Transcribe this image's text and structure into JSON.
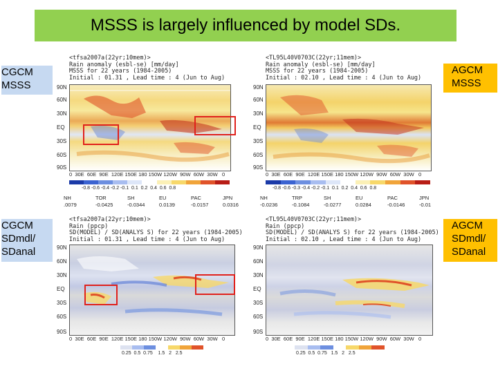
{
  "title": "MSSS is largely influenced by model SDs.",
  "labels": {
    "cgcm_msss": "CGCM\nMSSS",
    "agcm_msss": "AGCM\nMSSS",
    "cgcm_sd": "CGCM\nSDmdl/\nSDanal",
    "agcm_sd": "AGCM\nSDmdl/\nSDanal"
  },
  "panels": {
    "tl": {
      "header": "<tfsa2007a(22yr;10mem)>\nRain anomaly (esbl-se) [mm/day]\nMSSS for 22 years (1984-2005)\nInitial : 01.31 , Lead time : 4 (Jun to Aug)",
      "stats_names": [
        "NH",
        "TOR",
        "SH",
        "EU",
        "PAC",
        "JPN"
      ],
      "stats_values": [
        ".0079",
        "-0.0425",
        "-0.0344",
        "0.0139",
        "-0.0157",
        "0.0316"
      ]
    },
    "tr": {
      "header": "<TL95L40V0703C(22yr;11mem)>\nRain anomaly (esbl-se) [mm/day]\nMSSS for 22 years (1984-2005)\nInitial : 02.10 , Lead time : 4 (Jun to Aug)",
      "stats_names": [
        "NH",
        "TRP",
        "SH",
        "EU",
        "PAC",
        "JPN"
      ],
      "stats_values": [
        "-0.0236",
        "-0.1084",
        "-0.0277",
        "0.0284",
        "-0.0146",
        "-0.01"
      ]
    },
    "bl": {
      "header": "<tfsa2007a(22yr;10mem)>\nRain (ppcp)\nSD(MODEL) / SD(ANALYS S) for 22 years (1984-2005)\nInitial : 01.31 , Lead time : 4 (Jun to Aug)"
    },
    "br": {
      "header": "<TL95L40V0703C(22yr;11mem)>\nRain (ppcp)\nSD(MODEL) / SD(ANALYS S) for 22 years (1984-2005)\nInitial : 02.10 , Lead time : 4 (Jun to Aug)"
    }
  },
  "axes": {
    "lat_ticks": [
      "90N",
      "60N",
      "30N",
      "EQ",
      "30S",
      "60S",
      "90S"
    ],
    "lon_ticks": "0  30E  60E  90E  120E 150E 180 150W 120W  90W  60W  30W   0"
  },
  "colorbars": {
    "msss_tl": "-0.8 -0.6 -0.4 -0.2 -0.1  0.1  0.2  0.4  0.6  0.8",
    "msss_tr": "-0.8 -0.6 -0.3 -0.4 -0.2 -0.1  0.1  0.2  0.4  0.6  0.8",
    "sd": "0.25  0.5  0.75    1.5   2   2.5",
    "sd_right": "0.25  0.5  0.75   1.5   2   2.5"
  },
  "colors": {
    "title_bg": "#92d050",
    "cgcm_label_bg": "#c6d9f1",
    "agcm_label_bg": "#ffc000",
    "highlight": "#e0201b"
  }
}
